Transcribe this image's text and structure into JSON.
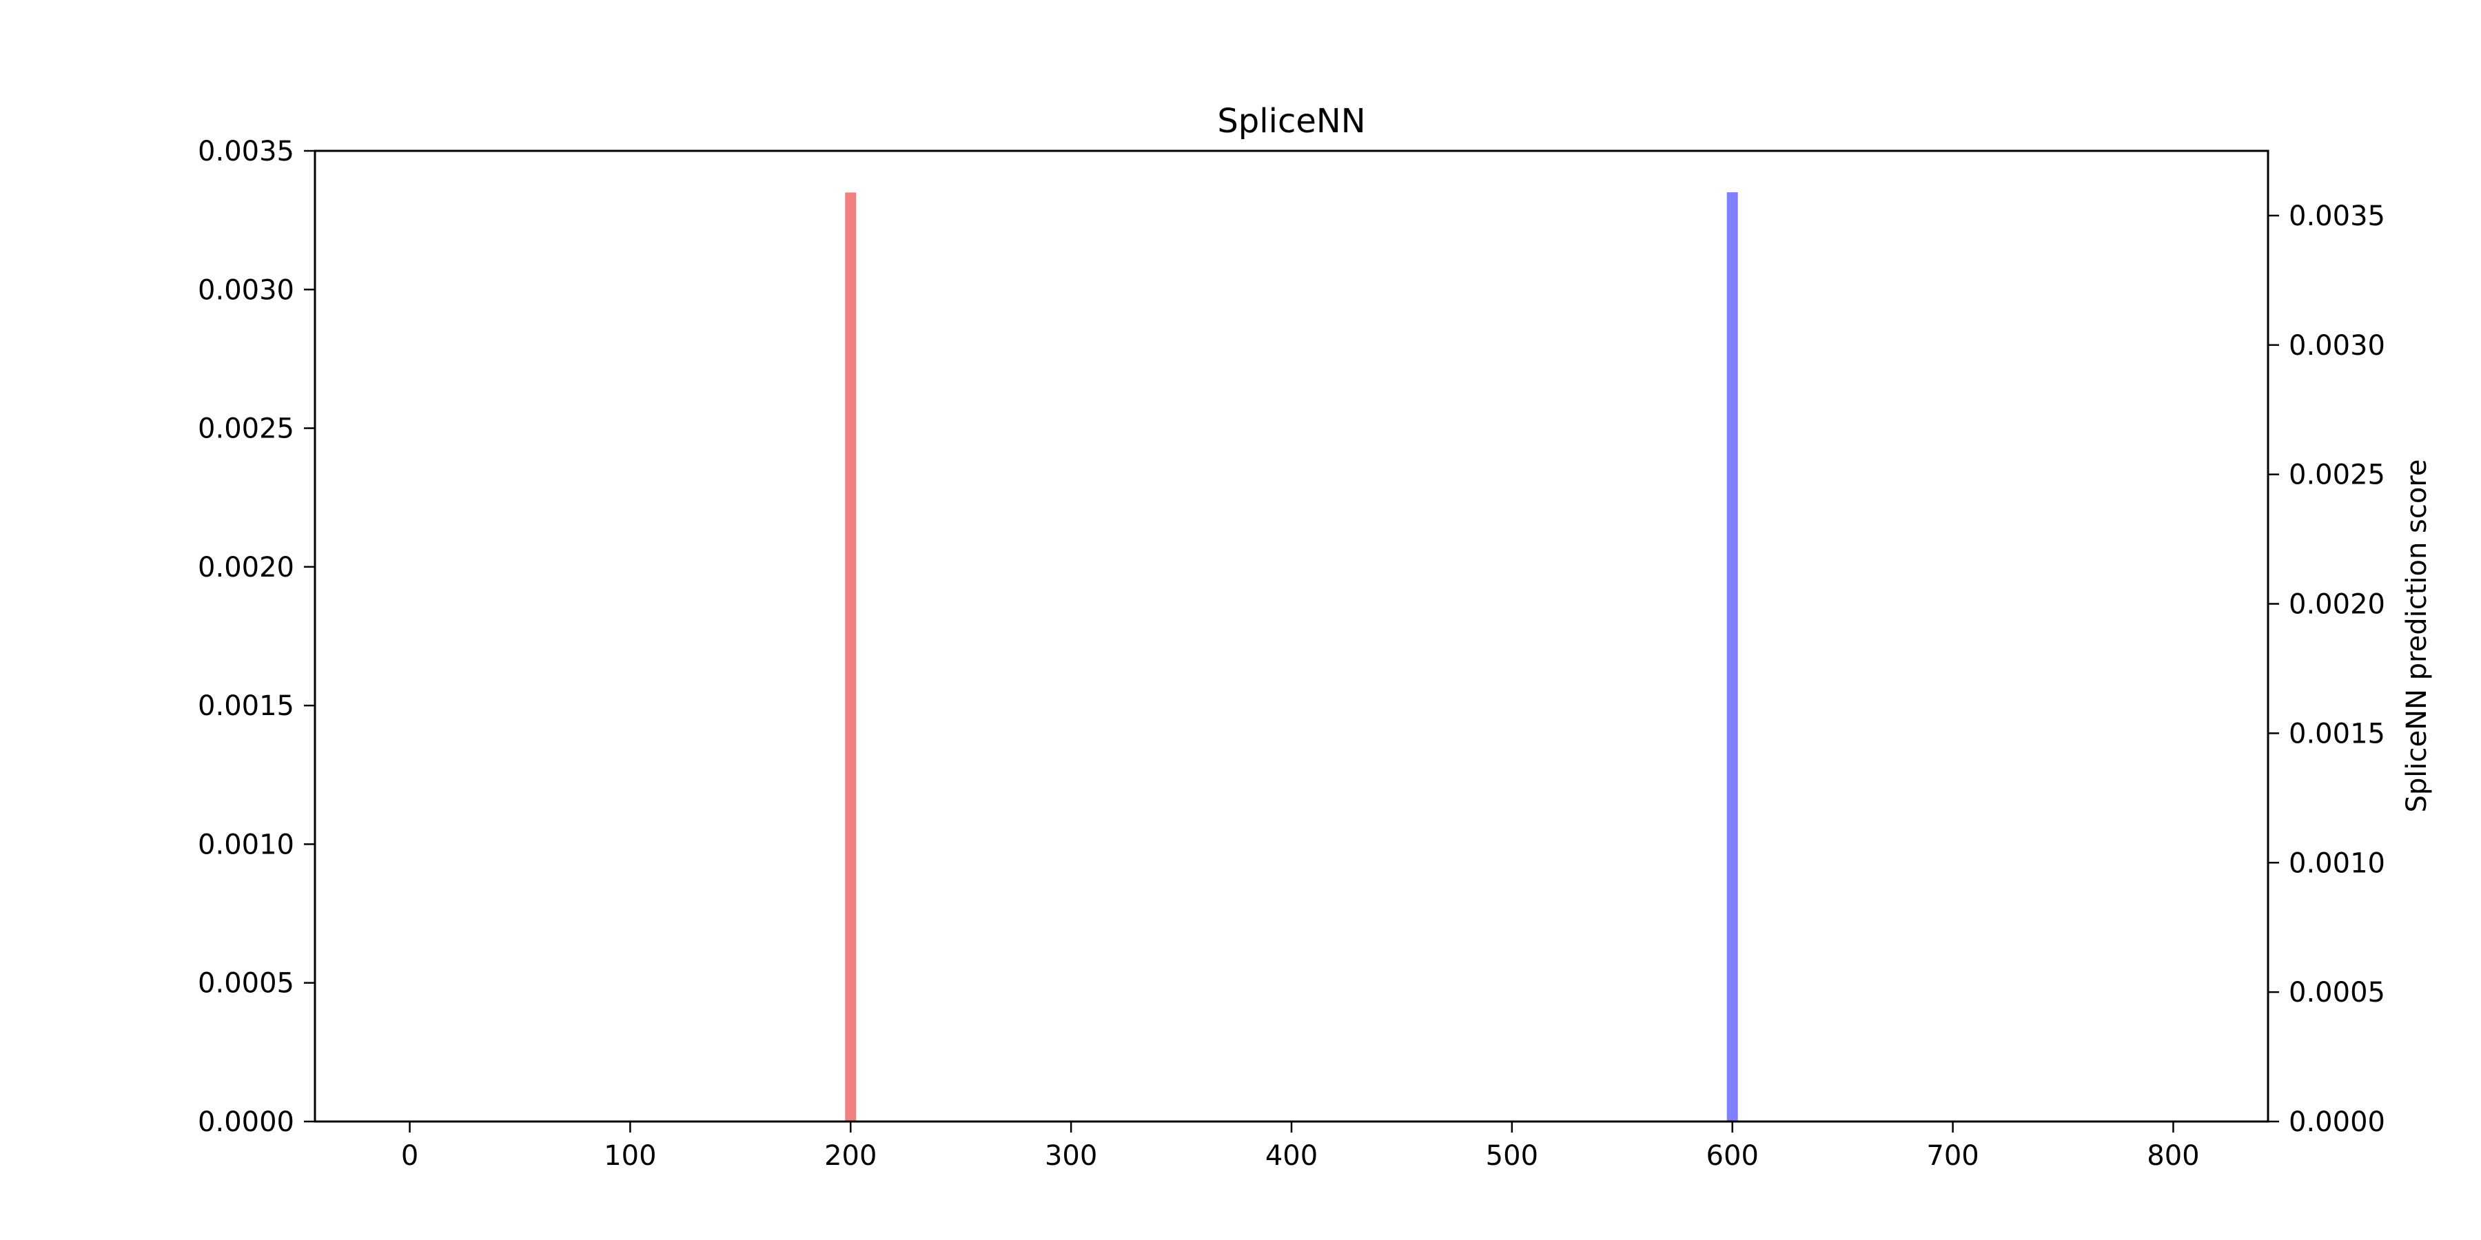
{
  "chart_data": {
    "type": "bar",
    "title": "SpliceNN",
    "xlabel": "",
    "ylabel_left": "",
    "ylabel_right": "SpliceNN prediction score",
    "xlim": [
      -43,
      843
    ],
    "ylim_left": [
      0,
      0.0035
    ],
    "ylim_right": [
      0,
      0.00375
    ],
    "x_ticks": [
      0,
      100,
      200,
      300,
      400,
      500,
      600,
      700,
      800
    ],
    "y_ticks_left": [
      "0.0000",
      "0.0005",
      "0.0010",
      "0.0015",
      "0.0020",
      "0.0025",
      "0.0030",
      "0.0035"
    ],
    "y_ticks_right": [
      "0.0000",
      "0.0005",
      "0.0010",
      "0.0015",
      "0.0020",
      "0.0025",
      "0.0030",
      "0.0035"
    ],
    "grid": false,
    "series": [
      {
        "axis": "left",
        "color": "#f08080",
        "bars": [
          {
            "x": 200,
            "value": 0.00335
          }
        ]
      },
      {
        "axis": "right",
        "color": "#8080ff",
        "bars": [
          {
            "x": 600,
            "value": 0.00359
          }
        ]
      }
    ]
  }
}
